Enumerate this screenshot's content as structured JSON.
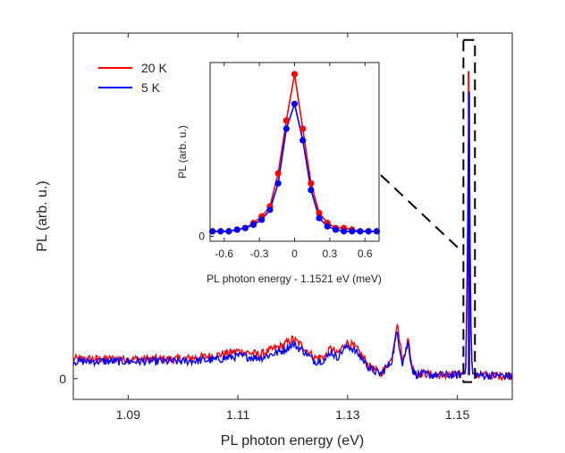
{
  "chart_data": [
    {
      "type": "line",
      "title": "",
      "xlabel": "PL photon energy (eV)",
      "ylabel": "PL (arb. u.)",
      "xlim": [
        1.08,
        1.16
      ],
      "ylim": [
        -0.06,
        1.0
      ],
      "xticks": [
        1.09,
        1.11,
        1.13,
        1.15
      ],
      "xtick_labels": [
        "1.09",
        "1.11",
        "1.13",
        "1.15"
      ],
      "yticks": [
        0
      ],
      "ytick_labels": [
        "0"
      ],
      "legend": {
        "location": "top-left",
        "entries": [
          "20 K",
          "5 K"
        ]
      },
      "series": [
        {
          "name": "20 K",
          "color": "#ff0000",
          "x": [
            1.08,
            1.09,
            1.1,
            1.106,
            1.11,
            1.114,
            1.118,
            1.12,
            1.122,
            1.124,
            1.126,
            1.127,
            1.128,
            1.129,
            1.13,
            1.131,
            1.132,
            1.134,
            1.136,
            1.138,
            1.139,
            1.14,
            1.141,
            1.1418,
            1.1425,
            1.144,
            1.146,
            1.15,
            1.1515,
            1.1518,
            1.1521,
            1.1524,
            1.1527,
            1.154,
            1.16
          ],
          "y": [
            0.057,
            0.057,
            0.057,
            0.067,
            0.08,
            0.07,
            0.095,
            0.115,
            0.092,
            0.06,
            0.065,
            0.09,
            0.07,
            0.09,
            0.105,
            0.095,
            0.08,
            0.035,
            0.015,
            0.055,
            0.165,
            0.05,
            0.115,
            0.03,
            0.015,
            0.015,
            0.01,
            0.01,
            0.015,
            0.3,
            0.89,
            0.2,
            0.015,
            0.01,
            0.008
          ]
        },
        {
          "name": "5 K",
          "color": "#0000ff",
          "x": [
            1.08,
            1.09,
            1.1,
            1.106,
            1.11,
            1.114,
            1.118,
            1.12,
            1.122,
            1.124,
            1.126,
            1.127,
            1.128,
            1.129,
            1.13,
            1.131,
            1.132,
            1.134,
            1.136,
            1.138,
            1.139,
            1.14,
            1.141,
            1.1418,
            1.1425,
            1.144,
            1.146,
            1.15,
            1.1515,
            1.1518,
            1.1521,
            1.1524,
            1.1527,
            1.154,
            1.16
          ],
          "y": [
            0.05,
            0.05,
            0.05,
            0.055,
            0.065,
            0.06,
            0.08,
            0.1,
            0.08,
            0.05,
            0.055,
            0.08,
            0.06,
            0.08,
            0.095,
            0.085,
            0.07,
            0.03,
            0.012,
            0.05,
            0.135,
            0.045,
            0.105,
            0.025,
            0.012,
            0.012,
            0.01,
            0.01,
            0.015,
            0.28,
            0.83,
            0.18,
            0.015,
            0.01,
            0.008
          ]
        }
      ],
      "annotations": [
        {
          "type": "dashed-box",
          "x_range": [
            1.1511,
            1.1532
          ],
          "y_range": [
            -0.01,
            0.98
          ]
        }
      ]
    },
    {
      "type": "line",
      "title": "",
      "xlabel": "PL photon energy - 1.1521 eV (meV)",
      "ylabel": "PL (arb. u.)",
      "xlim": [
        -0.72,
        0.72
      ],
      "ylim": [
        -0.03,
        1.05
      ],
      "xticks": [
        -0.6,
        -0.3,
        0,
        0.3,
        0.6
      ],
      "xtick_labels": [
        "-0.6",
        "-0.3",
        "0",
        "0.3",
        "0.6"
      ],
      "yticks": [
        0
      ],
      "ytick_labels": [
        "0"
      ],
      "series": [
        {
          "name": "20 K",
          "color": "#ff0000",
          "marker": "circle",
          "x": [
            -0.7,
            -0.63,
            -0.56,
            -0.49,
            -0.42,
            -0.35,
            -0.28,
            -0.21,
            -0.14,
            -0.07,
            0.0,
            0.07,
            0.14,
            0.21,
            0.28,
            0.35,
            0.42,
            0.49,
            0.56,
            0.63,
            0.7
          ],
          "y": [
            0.03,
            0.03,
            0.03,
            0.04,
            0.05,
            0.08,
            0.12,
            0.18,
            0.38,
            0.7,
            0.98,
            0.65,
            0.32,
            0.14,
            0.08,
            0.05,
            0.05,
            0.04,
            0.03,
            0.03,
            0.03
          ]
        },
        {
          "name": "5 K",
          "color": "#0000ff",
          "marker": "circle",
          "x": [
            -0.7,
            -0.63,
            -0.56,
            -0.49,
            -0.42,
            -0.35,
            -0.28,
            -0.21,
            -0.14,
            -0.07,
            0.0,
            0.07,
            0.14,
            0.21,
            0.28,
            0.35,
            0.42,
            0.49,
            0.56,
            0.63,
            0.7
          ],
          "y": [
            0.03,
            0.03,
            0.03,
            0.04,
            0.05,
            0.07,
            0.1,
            0.16,
            0.32,
            0.65,
            0.8,
            0.58,
            0.28,
            0.11,
            0.06,
            0.04,
            0.03,
            0.03,
            0.03,
            0.03,
            0.03
          ]
        }
      ]
    }
  ]
}
